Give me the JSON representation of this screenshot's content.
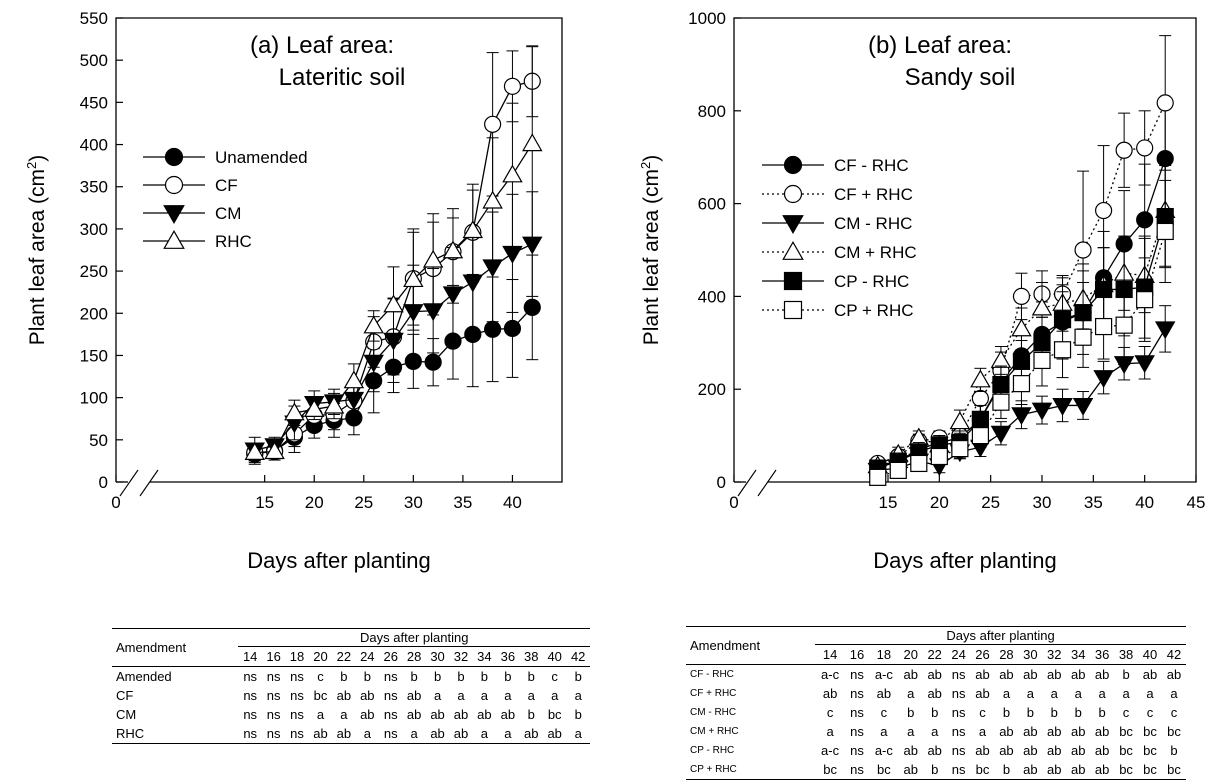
{
  "chart_data": [
    {
      "type": "line",
      "panel_title_line1": "(a) Leaf area:",
      "panel_title_line2": "Lateritic soil",
      "xlabel": "Days after planting",
      "ylabel": "Plant leaf area (cm",
      "ylabel_sup": "2",
      "ylabel_close": ")",
      "xlim": [
        0,
        45
      ],
      "ylim": [
        0,
        550
      ],
      "x_ticks": [
        0,
        15,
        20,
        25,
        30,
        35,
        40
      ],
      "y_ticks": [
        0,
        50,
        100,
        150,
        200,
        250,
        300,
        350,
        400,
        450,
        500,
        550
      ],
      "x_axis_break": true,
      "grid": false,
      "legend_position": "middle-left",
      "x": [
        14,
        16,
        18,
        20,
        22,
        24,
        26,
        28,
        30,
        32,
        34,
        36,
        38,
        40,
        42
      ],
      "series": [
        {
          "name": "Unamended",
          "marker": "circle-filled",
          "values": [
            33,
            37,
            53,
            67,
            73,
            76,
            120,
            136,
            143,
            142,
            167,
            175,
            181,
            182,
            207
          ],
          "errors": [
            12,
            8,
            18,
            15,
            20,
            20,
            38,
            30,
            32,
            28,
            45,
            62,
            62,
            58,
            62
          ]
        },
        {
          "name": "CF",
          "marker": "circle-open",
          "values": [
            35,
            36,
            57,
            79,
            80,
            96,
            166,
            172,
            241,
            253,
            273,
            296,
            424,
            469,
            475
          ],
          "errors": [
            10,
            8,
            15,
            15,
            18,
            22,
            30,
            45,
            55,
            55,
            40,
            50,
            85,
            42,
            42
          ]
        },
        {
          "name": "CM",
          "marker": "triangle-down-filled",
          "values": [
            38,
            43,
            70,
            93,
            95,
            98,
            142,
            168,
            202,
            203,
            223,
            237,
            255,
            271,
            282
          ],
          "errors": [
            15,
            10,
            20,
            15,
            15,
            18,
            35,
            50,
            55,
            50,
            55,
            60,
            65,
            70,
            62
          ]
        },
        {
          "name": "RHC",
          "marker": "triangle-up-open",
          "values": [
            35,
            36,
            82,
            86,
            90,
            120,
            185,
            210,
            240,
            263,
            274,
            298,
            333,
            364,
            401
          ],
          "errors": [
            10,
            10,
            15,
            12,
            15,
            20,
            18,
            45,
            60,
            55,
            50,
            55,
            75,
            85,
            115
          ]
        }
      ]
    },
    {
      "type": "line",
      "panel_title_line1": "(b) Leaf area:",
      "panel_title_line2": "Sandy soil",
      "xlabel": "Days after planting",
      "ylabel": "Plant leaf area (cm",
      "ylabel_sup": "2",
      "ylabel_close": ")",
      "xlim": [
        0,
        45
      ],
      "ylim": [
        0,
        1000
      ],
      "x_ticks": [
        0,
        15,
        20,
        25,
        30,
        35,
        40,
        45
      ],
      "y_ticks": [
        0,
        200,
        400,
        600,
        800,
        1000
      ],
      "x_axis_break": true,
      "grid": false,
      "legend_position": "middle-left",
      "x": [
        14,
        16,
        18,
        20,
        22,
        24,
        26,
        28,
        30,
        32,
        34,
        36,
        38,
        40,
        42
      ],
      "series": [
        {
          "name": "CF - RHC",
          "marker": "circle-filled",
          "line": "solid",
          "values": [
            35,
            45,
            70,
            85,
            95,
            135,
            215,
            272,
            318,
            345,
            365,
            440,
            513,
            565,
            697
          ],
          "errors": [
            15,
            20,
            20,
            20,
            25,
            30,
            45,
            55,
            70,
            80,
            90,
            100,
            115,
            120,
            120
          ]
        },
        {
          "name": "CF + RHC",
          "marker": "circle-open",
          "line": "dotted",
          "values": [
            40,
            55,
            88,
            95,
            100,
            180,
            240,
            400,
            405,
            405,
            500,
            585,
            715,
            720,
            817
          ],
          "errors": [
            10,
            12,
            15,
            15,
            20,
            30,
            40,
            50,
            50,
            35,
            170,
            140,
            80,
            80,
            145
          ]
        },
        {
          "name": "CM - RHC",
          "marker": "triangle-down-filled",
          "line": "solid",
          "values": [
            25,
            30,
            45,
            35,
            65,
            75,
            105,
            145,
            155,
            165,
            165,
            225,
            255,
            257,
            330
          ],
          "errors": [
            15,
            15,
            15,
            15,
            15,
            20,
            25,
            30,
            30,
            35,
            30,
            35,
            35,
            35,
            50
          ]
        },
        {
          "name": "CM + RHC",
          "marker": "triangle-up-open",
          "line": "dotted",
          "values": [
            35,
            60,
            95,
            80,
            130,
            220,
            262,
            330,
            375,
            385,
            395,
            425,
            450,
            445,
            585
          ],
          "errors": [
            10,
            15,
            15,
            20,
            25,
            25,
            30,
            45,
            55,
            60,
            75,
            80,
            80,
            80,
            120
          ]
        },
        {
          "name": "CP - RHC",
          "marker": "square-filled",
          "line": "solid",
          "values": [
            30,
            45,
            65,
            80,
            85,
            135,
            210,
            260,
            300,
            350,
            365,
            415,
            415,
            420,
            572
          ],
          "errors": [
            10,
            15,
            20,
            20,
            25,
            30,
            40,
            45,
            55,
            60,
            65,
            90,
            100,
            110,
            110
          ]
        },
        {
          "name": "CP + RHC",
          "marker": "square-open",
          "line": "dotted",
          "values": [
            10,
            25,
            40,
            55,
            72,
            100,
            172,
            212,
            262,
            285,
            312,
            335,
            338,
            393,
            540
          ],
          "errors": [
            10,
            12,
            15,
            15,
            20,
            25,
            35,
            45,
            55,
            60,
            65,
            70,
            85,
            90,
            110
          ]
        }
      ]
    }
  ],
  "table_a": {
    "corner_label": "Amendment",
    "group_header": "Days after planting",
    "days": [
      "14",
      "16",
      "18",
      "20",
      "22",
      "24",
      "26",
      "28",
      "30",
      "32",
      "34",
      "36",
      "38",
      "40",
      "42"
    ],
    "rows": [
      {
        "label": "Amended",
        "cells": [
          "ns",
          "ns",
          "ns",
          "c",
          "b",
          "b",
          "ns",
          "b",
          "b",
          "b",
          "b",
          "b",
          "b",
          "c",
          "b"
        ]
      },
      {
        "label": "CF",
        "cells": [
          "ns",
          "ns",
          "ns",
          "bc",
          "ab",
          "ab",
          "ns",
          "ab",
          "a",
          "a",
          "a",
          "a",
          "a",
          "a",
          "a"
        ]
      },
      {
        "label": "CM",
        "cells": [
          "ns",
          "ns",
          "ns",
          "a",
          "a",
          "ab",
          "ns",
          "ab",
          "ab",
          "ab",
          "ab",
          "ab",
          "b",
          "bc",
          "b"
        ]
      },
      {
        "label": "RHC",
        "cells": [
          "ns",
          "ns",
          "ns",
          "ab",
          "ab",
          "a",
          "ns",
          "a",
          "ab",
          "ab",
          "a",
          "a",
          "ab",
          "ab",
          "a"
        ]
      }
    ]
  },
  "table_b": {
    "corner_label": "Amendment",
    "group_header": "Days after planting",
    "days": [
      "14",
      "16",
      "18",
      "20",
      "22",
      "24",
      "26",
      "28",
      "30",
      "32",
      "34",
      "36",
      "38",
      "40",
      "42"
    ],
    "rows": [
      {
        "label": "CF - RHC",
        "cells": [
          "a-c",
          "ns",
          "a-c",
          "ab",
          "ab",
          "ns",
          "ab",
          "ab",
          "ab",
          "ab",
          "ab",
          "ab",
          "b",
          "ab",
          "ab"
        ]
      },
      {
        "label": "CF + RHC",
        "cells": [
          "ab",
          "ns",
          "ab",
          "a",
          "ab",
          "ns",
          "ab",
          "a",
          "a",
          "a",
          "a",
          "a",
          "a",
          "a",
          "a"
        ]
      },
      {
        "label": "CM - RHC",
        "cells": [
          "c",
          "ns",
          "c",
          "b",
          "b",
          "ns",
          "c",
          "b",
          "b",
          "b",
          "b",
          "b",
          "c",
          "c",
          "c"
        ]
      },
      {
        "label": "CM + RHC",
        "cells": [
          "a",
          "ns",
          "a",
          "a",
          "a",
          "ns",
          "a",
          "ab",
          "ab",
          "ab",
          "ab",
          "ab",
          "bc",
          "bc",
          "bc"
        ]
      },
      {
        "label": "CP - RHC",
        "cells": [
          "a-c",
          "ns",
          "a-c",
          "ab",
          "ab",
          "ns",
          "ab",
          "ab",
          "ab",
          "ab",
          "ab",
          "ab",
          "bc",
          "bc",
          "b"
        ]
      },
      {
        "label": "CP + RHC",
        "cells": [
          "bc",
          "ns",
          "bc",
          "ab",
          "b",
          "ns",
          "bc",
          "b",
          "ab",
          "ab",
          "ab",
          "ab",
          "bc",
          "bc",
          "bc"
        ]
      }
    ]
  }
}
